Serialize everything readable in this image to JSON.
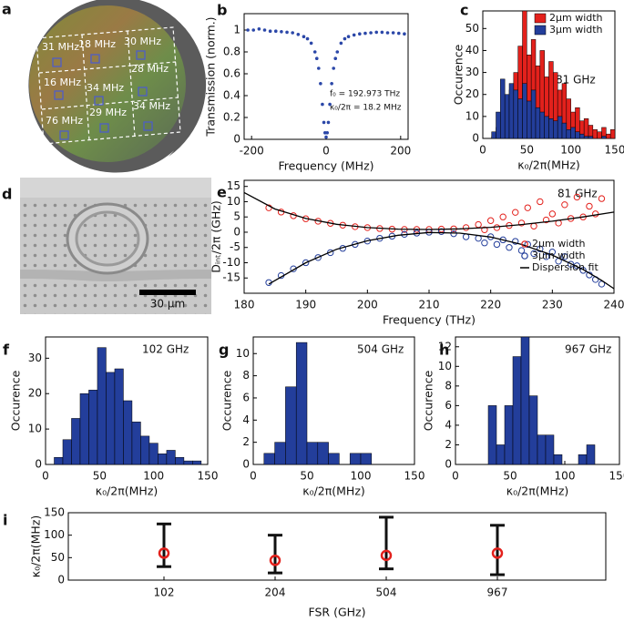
{
  "photo_a": {
    "panel": "a",
    "labels": [
      "31 MHz",
      "18 MHz",
      "30 MHz",
      "16 MHz",
      "34 MHz",
      "28 MHz",
      "76 MHz",
      "29 MHz",
      "34 MHz"
    ]
  },
  "photo_d": {
    "panel": "d",
    "scale_bar": "30 µm"
  },
  "chart_data": [
    {
      "panel": "b",
      "type": "scatter",
      "xlabel": "Frequency (MHz)",
      "ylabel": "Transmission (norm.)",
      "annotations": [
        "f₀ = 192.973 THz",
        "κ₀/2π = 18.2 MHz"
      ],
      "color": "#2b47a8",
      "x": [
        -210,
        -195,
        -180,
        -165,
        -150,
        -135,
        -120,
        -105,
        -90,
        -75,
        -60,
        -50,
        -40,
        -30,
        -25,
        -20,
        -15,
        -10,
        -6,
        -3,
        0,
        3,
        6,
        10,
        15,
        20,
        25,
        30,
        40,
        50,
        60,
        75,
        90,
        105,
        120,
        135,
        150,
        165,
        180,
        195,
        210
      ],
      "values": [
        1.0,
        1.0,
        1.01,
        1.0,
        0.99,
        0.99,
        0.985,
        0.98,
        0.975,
        0.96,
        0.94,
        0.92,
        0.88,
        0.8,
        0.74,
        0.65,
        0.51,
        0.32,
        0.155,
        0.06,
        0.02,
        0.06,
        0.155,
        0.32,
        0.51,
        0.65,
        0.74,
        0.8,
        0.88,
        0.92,
        0.94,
        0.955,
        0.965,
        0.97,
        0.975,
        0.98,
        0.98,
        0.975,
        0.975,
        0.97,
        0.965
      ],
      "xlim": [
        -220,
        220
      ],
      "xticks": [
        -200,
        0,
        200
      ],
      "ylim": [
        0,
        1.15
      ],
      "yticks": [
        0,
        0.2,
        0.4,
        0.6,
        0.8,
        1
      ]
    },
    {
      "panel": "c",
      "type": "histogram",
      "xlabel": "κ₀/2π(MHz)",
      "ylabel": "Occurence",
      "annotations": [
        "81 GHz"
      ],
      "legend": "upper right",
      "bins": [
        10,
        15,
        20,
        25,
        30,
        35,
        40,
        45,
        50,
        55,
        60,
        65,
        70,
        75,
        80,
        85,
        90,
        95,
        100,
        105,
        110,
        115,
        120,
        125,
        130,
        135,
        140,
        145,
        150
      ],
      "series": [
        {
          "name": "2µm width",
          "color": "#e3211c",
          "values": [
            1,
            5,
            8,
            18,
            22,
            30,
            42,
            58,
            38,
            45,
            33,
            40,
            28,
            35,
            30,
            22,
            25,
            18,
            12,
            14,
            8,
            9,
            6,
            4,
            3,
            5,
            2,
            4
          ]
        },
        {
          "name": "3µm width",
          "color": "#233e9b",
          "values": [
            3,
            12,
            27,
            20,
            25,
            22,
            18,
            25,
            17,
            22,
            14,
            12,
            10,
            9,
            8,
            10,
            7,
            4,
            5,
            3,
            2,
            1,
            1,
            0,
            0,
            1,
            0,
            0
          ]
        }
      ],
      "xlim": [
        0,
        150
      ],
      "xticks": [
        0,
        50,
        100,
        150
      ],
      "ylim": [
        0,
        58
      ],
      "yticks": [
        0,
        10,
        20,
        30,
        40,
        50
      ]
    },
    {
      "panel": "e",
      "type": "scatter",
      "xlabel": "Frequency (THz)",
      "ylabel": "Dᵢₙₜ/2π (GHz)",
      "annotations": [
        "81 GHz"
      ],
      "legend": "center right",
      "series": [
        {
          "name": "2µm width",
          "color": "#e3211c",
          "marker": "circle",
          "x": [
            184,
            186,
            188,
            190,
            192,
            194,
            196,
            198,
            200,
            202,
            204,
            206,
            208,
            210,
            212,
            214,
            216,
            218,
            219,
            220,
            221,
            222,
            223,
            224,
            225,
            226,
            227,
            228,
            229,
            230,
            231,
            232,
            233,
            234,
            235,
            236,
            237,
            238
          ],
          "values": [
            8.0,
            6.6,
            5.4,
            4.4,
            3.6,
            2.9,
            2.3,
            1.8,
            1.5,
            1.2,
            1.0,
            0.9,
            0.9,
            0.9,
            1.0,
            1.1,
            1.5,
            2.5,
            0.8,
            3.8,
            1.5,
            5.0,
            2.2,
            6.5,
            3.0,
            8.0,
            2.0,
            10.0,
            4.0,
            6.0,
            3.0,
            9.0,
            4.5,
            11.5,
            5.0,
            8.5,
            6.0,
            11.0
          ]
        },
        {
          "name": "3µm width",
          "color": "#233e9b",
          "marker": "circle",
          "x": [
            184,
            186,
            188,
            190,
            192,
            194,
            196,
            198,
            200,
            202,
            204,
            206,
            208,
            210,
            212,
            214,
            216,
            218,
            219,
            220,
            221,
            222,
            223,
            224,
            225,
            226,
            227,
            228,
            229,
            230,
            231,
            232,
            233,
            234,
            235,
            236,
            237,
            238
          ],
          "values": [
            -16.5,
            -14.2,
            -12.0,
            -10.0,
            -8.3,
            -6.7,
            -5.3,
            -4.0,
            -2.9,
            -2.0,
            -1.3,
            -0.7,
            -0.3,
            0.0,
            0.2,
            -0.5,
            -1.5,
            -2.0,
            -3.5,
            -1.5,
            -4.0,
            -2.5,
            -5.0,
            -3.0,
            -6.0,
            -4.0,
            -7.0,
            -5.5,
            -8.0,
            -6.5,
            -9.5,
            -8.0,
            -10.5,
            -11.0,
            -12.5,
            -14.0,
            -15.5,
            -17.0
          ]
        },
        {
          "name": "Dispersion fit",
          "color": "#000000",
          "marker": "line",
          "x": [
            180,
            185,
            190,
            195,
            200,
            205,
            210,
            215,
            220,
            225,
            230,
            235,
            240,
            null,
            184,
            190,
            195,
            200,
            205,
            210,
            215,
            220,
            225,
            230,
            235,
            238,
            240
          ],
          "values": [
            13,
            7.6,
            4.5,
            2.6,
            1.5,
            1.0,
            0.9,
            1.1,
            1.6,
            2.5,
            3.6,
            5.0,
            6.6,
            null,
            -17,
            -10,
            -5.6,
            -2.8,
            -1.0,
            -0.1,
            -0.3,
            -1.6,
            -4.0,
            -7.5,
            -12.2,
            -15.8,
            -18.5
          ]
        }
      ],
      "xlim": [
        180,
        240
      ],
      "xticks": [
        180,
        190,
        200,
        210,
        220,
        230,
        240
      ],
      "ylim": [
        -20,
        17
      ],
      "yticks": [
        -15,
        -10,
        -5,
        0,
        5,
        10,
        15
      ]
    },
    {
      "panel": "f",
      "type": "histogram",
      "xlabel": "κ₀/2π(MHz)",
      "ylabel": "Occurence",
      "annotations": [
        "102 GHz"
      ],
      "color": "#233e9b",
      "bins": [
        8,
        16,
        24,
        32,
        40,
        48,
        56,
        64,
        72,
        80,
        88,
        96,
        104,
        112,
        120,
        128,
        136,
        144
      ],
      "values": [
        2,
        7,
        13,
        20,
        21,
        33,
        26,
        27,
        18,
        12,
        8,
        6,
        3,
        4,
        2,
        1,
        1
      ],
      "xlim": [
        0,
        150
      ],
      "xticks": [
        0,
        50,
        100,
        150
      ],
      "ylim": [
        0,
        36
      ],
      "yticks": [
        0,
        10,
        20,
        30
      ]
    },
    {
      "panel": "g",
      "type": "histogram",
      "xlabel": "κ₀/2π(MHz)",
      "ylabel": "Occurence",
      "annotations": [
        "504 GHz"
      ],
      "color": "#233e9b",
      "bins": [
        10,
        20,
        30,
        40,
        50,
        60,
        70,
        80,
        90,
        100,
        110
      ],
      "values": [
        1,
        2,
        7,
        11,
        2,
        2,
        1,
        0,
        1,
        1
      ],
      "xlim": [
        0,
        150
      ],
      "xticks": [
        0,
        50,
        100,
        150
      ],
      "ylim": [
        0,
        11.5
      ],
      "yticks": [
        0,
        2,
        4,
        6,
        8,
        10
      ]
    },
    {
      "panel": "h",
      "type": "histogram",
      "xlabel": "κ₀/2π(MHz)",
      "ylabel": "Occurence",
      "annotations": [
        "967 GHz"
      ],
      "color": "#233e9b",
      "bins": [
        30,
        37.5,
        45,
        52.5,
        60,
        67.5,
        75,
        82.5,
        90,
        97.5,
        105,
        112.5,
        120,
        127.5
      ],
      "values": [
        6,
        2,
        6,
        11,
        13,
        7,
        3,
        3,
        1,
        0,
        0,
        1,
        2
      ],
      "xlim": [
        0,
        150
      ],
      "xticks": [
        0,
        50,
        100,
        150
      ],
      "ylim": [
        0,
        13
      ],
      "yticks": [
        0,
        2,
        4,
        6,
        8,
        10,
        12
      ]
    },
    {
      "panel": "i",
      "type": "errorbar",
      "xlabel": "FSR (GHz)",
      "ylabel": "κ₀/2π(MHz)",
      "categories": [
        "102",
        "204",
        "504",
        "967"
      ],
      "values": [
        60,
        44,
        55,
        60
      ],
      "low": [
        30,
        16,
        25,
        12
      ],
      "high": [
        125,
        100,
        140,
        122
      ],
      "color": "#e3211c",
      "bar_color": "#111111",
      "ylim": [
        0,
        150
      ],
      "yticks": [
        0,
        50,
        100,
        150
      ]
    }
  ]
}
